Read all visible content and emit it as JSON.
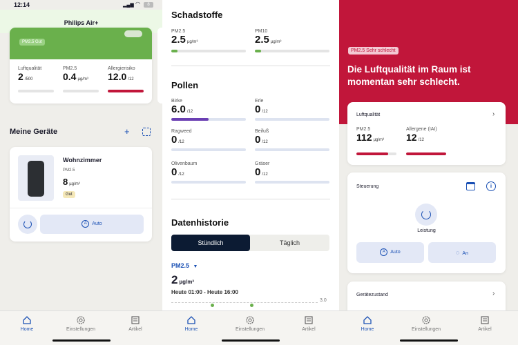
{
  "colors": {
    "good_green": "#6ab04c",
    "bad_red": "#c1163a",
    "accent_blue": "#1a50b4",
    "navy": "#0c1b33",
    "birke_purple": "#6a3fb3"
  },
  "status_bar": {
    "time": "12:14",
    "battery": "8"
  },
  "panel1": {
    "title": "Philips Air+",
    "status_badge": "PM2.5 Gut",
    "metrics": [
      {
        "label": "Luftqualität",
        "value": "2",
        "unit": "/500",
        "level": 0.0
      },
      {
        "label": "PM2.5",
        "value": "0.4",
        "unit": "µg/m³",
        "level": 0.0
      },
      {
        "label": "Allergierisiko",
        "value": "12.0",
        "unit": "/12",
        "level": 1.0
      }
    ],
    "devices_heading": "Meine Geräte",
    "add_icon": "plus-icon",
    "add_device_icon": "add-device-icon",
    "device": {
      "name": "Wohnzimmer",
      "metric_label": "PM2.5",
      "metric_value": "8",
      "metric_unit": "µg/m³",
      "badge": "Gut",
      "mode_label": "Auto"
    }
  },
  "panel2": {
    "schadstoffe_title": "Schadstoffe",
    "schadstoffe": [
      {
        "label": "PM2.5",
        "value": "2.5",
        "unit": "µg/m³",
        "level": 0.08
      },
      {
        "label": "PM10",
        "value": "2.5",
        "unit": "µg/m³",
        "level": 0.08
      }
    ],
    "pollen_title": "Pollen",
    "pollen": [
      {
        "label": "Birke",
        "value": "6.0",
        "unit": "/12",
        "level": 0.5
      },
      {
        "label": "Erle",
        "value": "0",
        "unit": "/12",
        "level": 0.0
      },
      {
        "label": "Ragweed",
        "value": "0",
        "unit": "/12",
        "level": 0.0
      },
      {
        "label": "Beifuß",
        "value": "0",
        "unit": "/12",
        "level": 0.0
      },
      {
        "label": "Olivenbaum",
        "value": "0",
        "unit": "/12",
        "level": 0.0
      },
      {
        "label": "Gräser",
        "value": "0",
        "unit": "/12",
        "level": 0.0
      }
    ],
    "history_title": "Datenhistorie",
    "segments": [
      "Stündlich",
      "Täglich"
    ],
    "dropdown_label": "PM2.5",
    "history_value": "2",
    "history_unit": "µg/m³",
    "history_range": "Heute 01:00 - Heute 16:00",
    "chart_axis_label": "3.0"
  },
  "panel3": {
    "badge": "PM2.5 Sehr schlecht",
    "headline": "Die Luftqualität im Raum ist momentan sehr schlecht.",
    "card1_title": "Luftqualität",
    "metrics": [
      {
        "label": "PM2.5",
        "value": "112",
        "unit": "µg/m³",
        "level": 0.8
      },
      {
        "label": "Allergene (IAI)",
        "value": "12",
        "unit": "/12",
        "level": 1.0
      }
    ],
    "control_title": "Steuerung",
    "power_label": "Leistung",
    "mode_label": "Auto",
    "light_label": "An",
    "device_state_title": "Gerätezustand"
  },
  "tabbar": {
    "home": "Home",
    "settings": "Einstellungen",
    "articles": "Artikel"
  }
}
